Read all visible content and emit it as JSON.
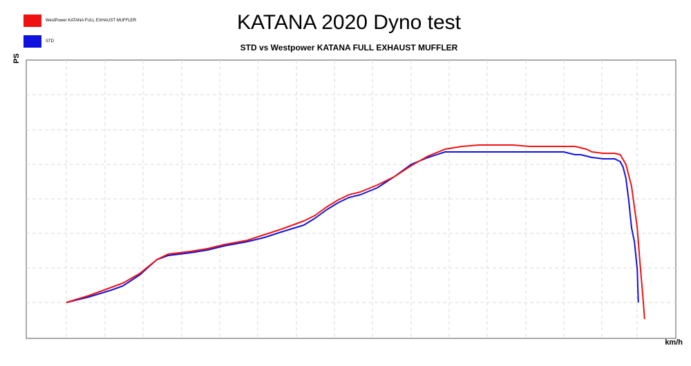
{
  "chart_data": {
    "type": "line",
    "title": "KATANA 2020 Dyno test",
    "subtitle": "STD vs Westpower KATANA FULL EXHAUST MUFFLER",
    "xlabel": "km/h",
    "ylabel": "PS",
    "xlim": [
      0,
      100
    ],
    "ylim": [
      0,
      100
    ],
    "grid": true,
    "legend_position": "top-left",
    "series": [
      {
        "name": "WestPower KATANA FULL EXHAUST MUFFLER",
        "color": "#ee1111",
        "x": [
          0,
          4,
          8,
          10,
          13,
          16,
          18,
          20,
          22,
          25,
          28,
          32,
          35,
          38,
          42,
          44,
          46,
          48,
          50,
          52,
          55,
          58,
          61,
          64,
          67,
          70,
          73,
          76,
          79,
          82,
          85,
          88,
          89,
          90,
          91,
          92,
          93,
          95,
          97,
          98,
          99,
          100,
          101,
          101.5,
          102,
          102.3
        ],
        "y": [
          13,
          15.5,
          18.5,
          20,
          23.5,
          28.5,
          30.5,
          31,
          31.5,
          32.5,
          34,
          35.5,
          37.5,
          39.5,
          42.5,
          44.5,
          47.5,
          50,
          52,
          53,
          55.5,
          58.5,
          62.5,
          66,
          68.5,
          69.5,
          70,
          70,
          70,
          69.5,
          69.5,
          69.5,
          69.5,
          69.5,
          69,
          68.5,
          67.5,
          67,
          67,
          66.5,
          63,
          55,
          40,
          27,
          15,
          7
        ]
      },
      {
        "name": "STD",
        "color": "#1111dd",
        "x": [
          0,
          4,
          8,
          10,
          13,
          16,
          18,
          20,
          22,
          25,
          28,
          32,
          35,
          38,
          42,
          44,
          46,
          48,
          50,
          52,
          55,
          58,
          61,
          64,
          67,
          70,
          73,
          76,
          79,
          82,
          85,
          87,
          88,
          89,
          90,
          91,
          92,
          93,
          95,
          97,
          98,
          98.5,
          99,
          99.5,
          100,
          100.5,
          101,
          101.2
        ],
        "y": [
          13,
          15,
          17.5,
          19,
          23,
          28.5,
          30,
          30.5,
          31,
          32,
          33.5,
          35,
          36.5,
          38.5,
          41,
          43.5,
          46.5,
          49,
          51,
          52,
          54.5,
          58.5,
          63,
          65.5,
          67.5,
          67.5,
          67.5,
          67.5,
          67.5,
          67.5,
          67.5,
          67.5,
          67.5,
          67,
          66.5,
          66.5,
          66,
          65.5,
          65,
          65,
          64,
          62,
          58,
          50,
          40,
          35,
          25,
          13
        ]
      }
    ]
  }
}
